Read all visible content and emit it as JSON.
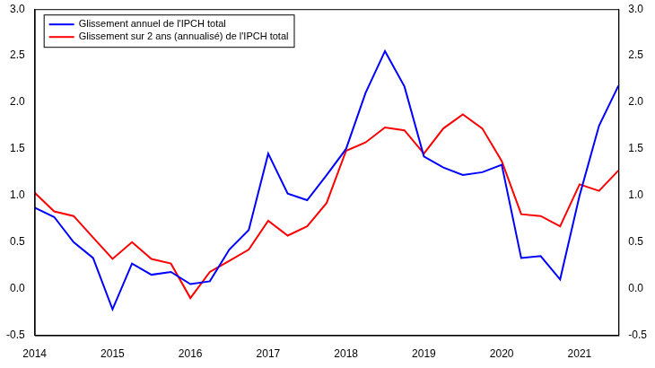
{
  "chart_data": {
    "type": "line",
    "categories": [
      "2014",
      null,
      null,
      null,
      "2015",
      null,
      null,
      null,
      "2016",
      null,
      null,
      null,
      "2017",
      null,
      null,
      null,
      "2018",
      null,
      null,
      null,
      "2019",
      null,
      null,
      null,
      "2020",
      null,
      null,
      null,
      "2021",
      null,
      null
    ],
    "series": [
      {
        "name": "Glissement annuel de l'IPCH total",
        "color": "#0000ff",
        "values": [
          0.87,
          0.77,
          0.5,
          0.33,
          -0.22,
          0.27,
          0.15,
          0.18,
          0.05,
          0.08,
          0.42,
          0.63,
          1.45,
          1.02,
          0.95,
          1.22,
          1.5,
          2.1,
          2.55,
          2.17,
          1.42,
          1.3,
          1.22,
          1.25,
          1.33,
          0.33,
          0.35,
          0.1,
          1.0,
          1.75,
          2.18
        ]
      },
      {
        "name": "Glissement sur 2 ans (annualisé) de l'IPCH total",
        "color": "#ff0000",
        "values": [
          1.03,
          0.83,
          0.78,
          0.55,
          0.32,
          0.5,
          0.32,
          0.27,
          -0.1,
          0.18,
          0.3,
          0.42,
          0.73,
          0.57,
          0.67,
          0.92,
          1.48,
          1.57,
          1.73,
          1.7,
          1.45,
          1.72,
          1.87,
          1.72,
          1.37,
          0.8,
          0.78,
          0.67,
          1.12,
          1.05,
          1.27
        ]
      }
    ],
    "ylim": [
      -0.5,
      3.0
    ],
    "yticks": [
      -0.5,
      {
        "value": 0,
        "label": "0.0"
      },
      0.5,
      {
        "value": 1,
        "label": "1.0"
      },
      1.5,
      {
        "value": 2,
        "label": "2.0"
      },
      2.5,
      {
        "value": 3,
        "label": "3.0"
      }
    ],
    "y2lim": [
      -0.5,
      3.0
    ],
    "y2ticks": [
      -0.5,
      {
        "value": 0,
        "label": "0.0"
      },
      0.5,
      {
        "value": 1,
        "label": "1.0"
      },
      1.5,
      {
        "value": 2,
        "label": "2.0"
      },
      2.5,
      {
        "value": 3,
        "label": "3.0"
      }
    ],
    "grid": false,
    "legend": "upper left"
  }
}
